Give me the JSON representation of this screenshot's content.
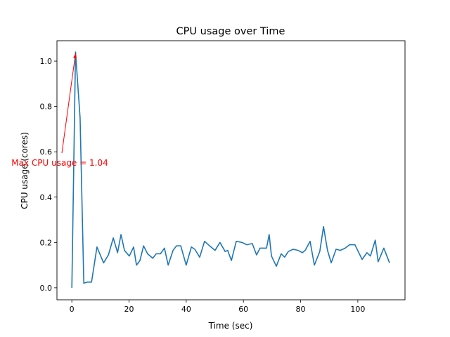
{
  "chart_data": {
    "type": "line",
    "title": "CPU usage over Time",
    "xlabel": "Time (sec)",
    "ylabel": "CPU usage (cores)",
    "xlim": [
      -5.2,
      116.5
    ],
    "ylim": [
      -0.053,
      1.09
    ],
    "xticks": [
      0,
      20,
      40,
      60,
      80,
      100
    ],
    "xtick_labels": [
      "0",
      "20",
      "40",
      "60",
      "80",
      "100"
    ],
    "yticks": [
      0.0,
      0.2,
      0.4,
      0.6,
      0.8,
      1.0
    ],
    "ytick_labels": [
      "0.0",
      "0.2",
      "0.4",
      "0.6",
      "0.8",
      "1.0"
    ],
    "grid": false,
    "series": [
      {
        "name": "CPU usage",
        "color": "#1f77b4",
        "x": [
          0,
          1.3,
          2.9,
          4.2,
          5.4,
          6.9,
          8.8,
          11.1,
          12.8,
          14.5,
          16.0,
          17.2,
          18.4,
          20.1,
          21.6,
          22.6,
          23.8,
          25.1,
          26.5,
          28.3,
          29.5,
          31.0,
          32.4,
          33.7,
          35.4,
          36.6,
          38.1,
          40.0,
          41.8,
          43.0,
          44.7,
          46.4,
          48.2,
          50.1,
          51.8,
          53.6,
          54.5,
          55.8,
          57.5,
          59.5,
          61.2,
          63.1,
          64.6,
          65.8,
          68.1,
          69.0,
          69.8,
          71.5,
          73.2,
          74.4,
          75.7,
          77.4,
          79.1,
          80.6,
          81.6,
          83.3,
          84.8,
          86.7,
          88.0,
          89.4,
          90.7,
          92.4,
          93.9,
          95.6,
          97.1,
          99.0,
          101.5,
          103.2,
          104.4,
          106.1,
          107.1,
          109.1,
          111.1
        ],
        "y": [
          0,
          1.04,
          0.75,
          0.02,
          0.025,
          0.025,
          0.18,
          0.11,
          0.145,
          0.22,
          0.155,
          0.235,
          0.165,
          0.14,
          0.18,
          0.1,
          0.12,
          0.185,
          0.15,
          0.13,
          0.15,
          0.15,
          0.175,
          0.1,
          0.165,
          0.185,
          0.185,
          0.1,
          0.18,
          0.17,
          0.135,
          0.205,
          0.185,
          0.165,
          0.2,
          0.16,
          0.165,
          0.12,
          0.205,
          0.2,
          0.19,
          0.195,
          0.145,
          0.175,
          0.175,
          0.235,
          0.14,
          0.095,
          0.15,
          0.135,
          0.16,
          0.17,
          0.165,
          0.155,
          0.165,
          0.205,
          0.1,
          0.16,
          0.27,
          0.165,
          0.11,
          0.17,
          0.165,
          0.175,
          0.19,
          0.19,
          0.125,
          0.155,
          0.14,
          0.21,
          0.115,
          0.175,
          0.11
        ]
      }
    ],
    "annotation": {
      "text": "Max CPU usage = 1.04",
      "xy": [
        1.3,
        1.04
      ],
      "color": "#ff0000"
    }
  }
}
